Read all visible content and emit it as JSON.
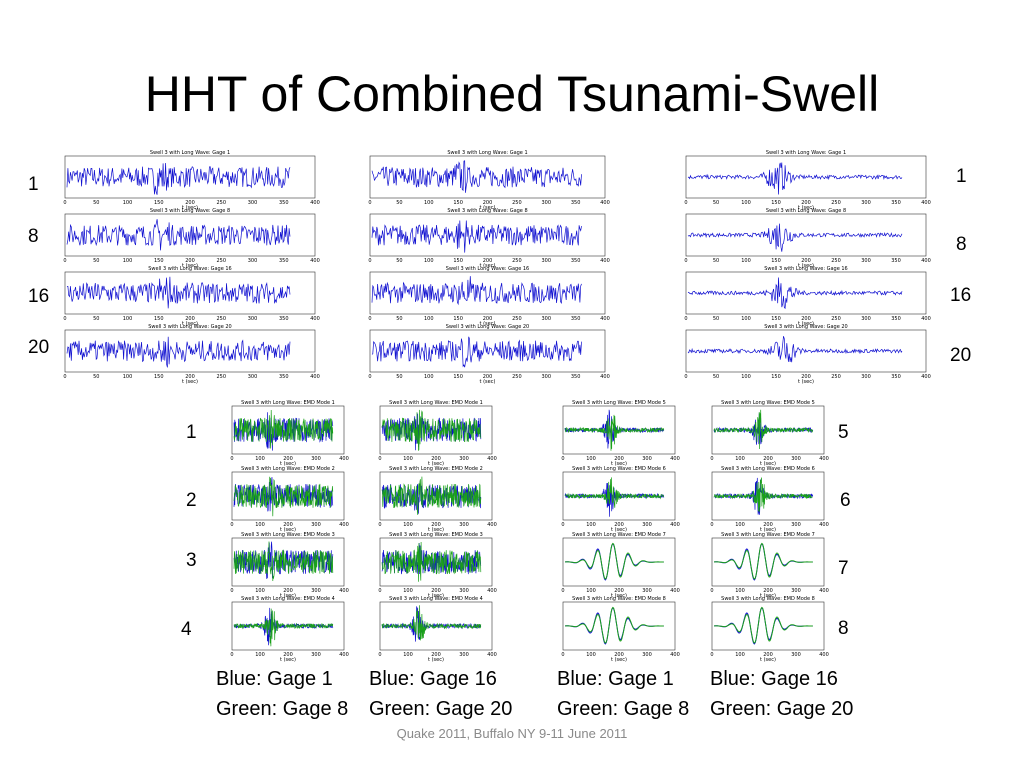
{
  "slide": {
    "title": "HHT of Combined Tsunami-Swell",
    "footer": "Quake 2011, Buffalo NY 9-11 June 2011",
    "labels_top_left": [
      "1",
      "8",
      "16",
      "20"
    ],
    "labels_top_right": [
      "1",
      "8",
      "16",
      "20"
    ],
    "labels_bottom_left": [
      "1",
      "2",
      "3",
      "4"
    ],
    "labels_bottom_right": [
      "5",
      "6",
      "7",
      "8"
    ],
    "legends": [
      {
        "line1": "Blue: Gage 1",
        "line2": "Green: Gage 8"
      },
      {
        "line1": "Blue: Gage 16",
        "line2": "Green: Gage 20"
      },
      {
        "line1": "Blue: Gage 1",
        "line2": "Green: Gage 8"
      },
      {
        "line1": "Blue: Gage 16",
        "line2": "Green: Gage 20"
      }
    ]
  },
  "colors": {
    "blue": "#1010d0",
    "green": "#1aa01a"
  },
  "plot_text": {
    "gage_titles": [
      "Swell 3 with Long Wave: Gage 1",
      "Swell 3 with Long Wave: Gage 8",
      "Swell 3 with Long Wave: Gage 16",
      "Swell 3 with Long Wave: Gage 20"
    ],
    "mode_titles": [
      "Swell 3 with Long Wave: EMD Mode 1",
      "Swell 3 with Long Wave: EMD Mode 2",
      "Swell 3 with Long Wave: EMD Mode 3",
      "Swell 3 with Long Wave: EMD Mode 4",
      "Swell 3 with Long Wave: EMD Mode 5",
      "Swell 3 with Long Wave: EMD Mode 6",
      "Swell 3 with Long Wave: EMD Mode 7",
      "Swell 3 with Long Wave: EMD Mode 8"
    ],
    "xlabel": "t (sec)",
    "xticks": [
      "0",
      "50",
      "100",
      "150",
      "200",
      "250",
      "300",
      "350",
      "400"
    ],
    "mode_xticks": [
      "0",
      "100",
      "200",
      "300",
      "400"
    ]
  }
}
